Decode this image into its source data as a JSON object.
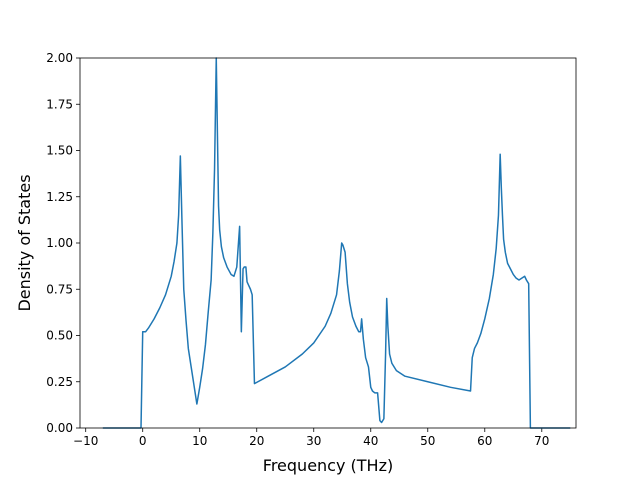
{
  "chart_data": {
    "type": "line",
    "title": "",
    "xlabel": "Frequency (THz)",
    "ylabel": "Density of States",
    "xlim": [
      -11,
      76
    ],
    "ylim": [
      0.0,
      2.0
    ],
    "grid": false,
    "line_color": "#1f77b4",
    "xticks": [
      -10,
      0,
      10,
      20,
      30,
      40,
      50,
      60,
      70
    ],
    "xtick_labels": [
      "−10",
      "0",
      "10",
      "20",
      "30",
      "40",
      "50",
      "60",
      "70"
    ],
    "yticks": [
      0.0,
      0.25,
      0.5,
      0.75,
      1.0,
      1.25,
      1.5,
      1.75,
      2.0
    ],
    "ytick_labels": [
      "0.00",
      "0.25",
      "0.50",
      "0.75",
      "1.00",
      "1.25",
      "1.50",
      "1.75",
      "2.00"
    ],
    "series": [
      {
        "x": [
          -7,
          -0.3,
          0,
          0.5,
          1,
          2,
          3,
          4,
          5,
          5.5,
          6,
          6.3,
          6.6,
          6.9,
          7.2,
          7.6,
          8,
          8.5,
          9,
          9.5,
          10,
          10.5,
          11,
          11.5,
          12,
          12.3,
          12.6,
          12.9,
          13.1,
          13.3,
          13.5,
          13.8,
          14.2,
          14.8,
          15.5,
          16,
          16.5,
          17,
          17.3,
          17.6,
          17.8,
          18.1,
          18.3,
          18.6,
          18.9,
          19.2,
          19.6,
          20.2,
          22,
          25,
          28,
          30,
          32,
          33,
          34,
          34.5,
          34.9,
          35.1,
          35.5,
          35.9,
          36.3,
          36.8,
          37.4,
          37.9,
          38.2,
          38.4,
          38.7,
          39.1,
          39.6,
          40,
          40.3,
          40.7,
          41.2,
          41.6,
          41.9,
          42.3,
          42.6,
          42.8,
          43,
          43.3,
          43.7,
          44.5,
          46,
          50,
          54,
          57.5,
          57.8,
          58.2,
          58.7,
          59.3,
          60,
          60.8,
          61.5,
          62,
          62.4,
          62.7,
          62.9,
          63.1,
          63.3,
          63.6,
          64,
          64.5,
          65,
          65.5,
          66,
          66.5,
          67,
          67.3,
          67.7,
          68,
          68.3,
          68.7,
          75
        ],
        "y": [
          0.0,
          0.0,
          0.52,
          0.52,
          0.54,
          0.59,
          0.65,
          0.72,
          0.82,
          0.9,
          1.0,
          1.15,
          1.47,
          1.1,
          0.75,
          0.58,
          0.43,
          0.33,
          0.23,
          0.13,
          0.22,
          0.32,
          0.45,
          0.63,
          0.8,
          1.05,
          1.4,
          2.0,
          1.6,
          1.2,
          1.07,
          0.98,
          0.92,
          0.87,
          0.83,
          0.82,
          0.87,
          1.09,
          0.52,
          0.86,
          0.87,
          0.87,
          0.79,
          0.77,
          0.75,
          0.72,
          0.24,
          0.25,
          0.28,
          0.33,
          0.4,
          0.46,
          0.55,
          0.62,
          0.72,
          0.85,
          1.0,
          0.99,
          0.95,
          0.78,
          0.68,
          0.6,
          0.55,
          0.52,
          0.52,
          0.59,
          0.48,
          0.38,
          0.33,
          0.22,
          0.2,
          0.19,
          0.19,
          0.04,
          0.03,
          0.05,
          0.4,
          0.7,
          0.55,
          0.4,
          0.35,
          0.31,
          0.28,
          0.25,
          0.22,
          0.2,
          0.38,
          0.43,
          0.46,
          0.51,
          0.59,
          0.7,
          0.83,
          0.97,
          1.15,
          1.48,
          1.3,
          1.15,
          1.02,
          0.95,
          0.89,
          0.86,
          0.83,
          0.81,
          0.8,
          0.81,
          0.82,
          0.8,
          0.78,
          0.0,
          0.0,
          0.0,
          0.0
        ]
      }
    ]
  }
}
